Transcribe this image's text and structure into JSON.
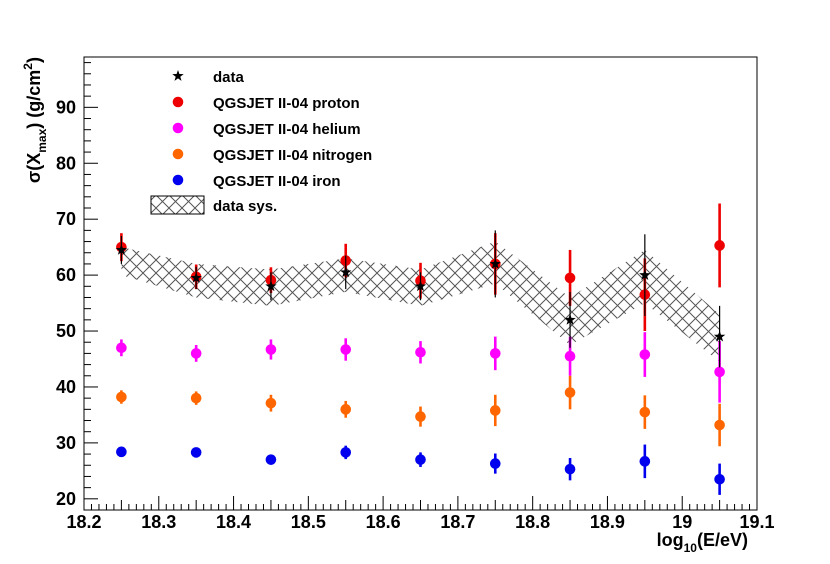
{
  "chart_data": {
    "type": "scatter",
    "xlabel_main": "log",
    "xlabel_sub": "10",
    "xlabel_rest": "(E/eV)",
    "ylabel_sigma": "σ(X",
    "ylabel_sub": "max",
    "ylabel_rest": ") (g/cm",
    "ylabel_sup": "2",
    "ylabel_close": ")",
    "xlim": [
      18.2,
      19.1
    ],
    "ylim": [
      18,
      99
    ],
    "x_ticks": [
      {
        "v": 18.2,
        "label": "18.2"
      },
      {
        "v": 18.3,
        "label": "18.3"
      },
      {
        "v": 18.4,
        "label": "18.4"
      },
      {
        "v": 18.5,
        "label": "18.5"
      },
      {
        "v": 18.6,
        "label": "18.6"
      },
      {
        "v": 18.7,
        "label": "18.7"
      },
      {
        "v": 18.8,
        "label": "18.8"
      },
      {
        "v": 18.9,
        "label": "18.9"
      },
      {
        "v": 19.0,
        "label": "19"
      },
      {
        "v": 19.1,
        "label": "19.1"
      }
    ],
    "y_ticks": [
      {
        "v": 20,
        "label": "20"
      },
      {
        "v": 30,
        "label": "30"
      },
      {
        "v": 40,
        "label": "40"
      },
      {
        "v": 50,
        "label": "50"
      },
      {
        "v": 60,
        "label": "60"
      },
      {
        "v": 70,
        "label": "70"
      },
      {
        "v": 80,
        "label": "80"
      },
      {
        "v": 90,
        "label": "90"
      }
    ],
    "legend": [
      {
        "key": "data",
        "label": "data",
        "marker": "star",
        "color": "#000000"
      },
      {
        "key": "proton",
        "label": "QGSJET II-04 proton",
        "marker": "circle",
        "color": "#ee0000"
      },
      {
        "key": "helium",
        "label": "QGSJET II-04 helium",
        "marker": "circle",
        "color": "#ff00ff"
      },
      {
        "key": "nitrogen",
        "label": "QGSJET II-04 nitrogen",
        "marker": "circle",
        "color": "#ff6600"
      },
      {
        "key": "iron",
        "label": "QGSJET II-04 iron",
        "marker": "circle",
        "color": "#0000ee"
      },
      {
        "key": "sys",
        "label": "data sys.",
        "marker": "hatch",
        "color": "#555555"
      }
    ],
    "series": [
      {
        "name": "data",
        "marker": "star",
        "color": "#000000",
        "x": [
          18.25,
          18.35,
          18.45,
          18.55,
          18.65,
          18.75,
          18.85,
          18.95,
          19.05
        ],
        "y": [
          64.5,
          59.5,
          58.0,
          60.5,
          58.0,
          62.0,
          52.0,
          60.0,
          49.0
        ],
        "err": [
          2.5,
          2.0,
          2.5,
          3.0,
          2.5,
          6.0,
          5.0,
          7.3,
          5.5
        ]
      },
      {
        "name": "QGSJET II-04 proton",
        "marker": "circle",
        "color": "#ee0000",
        "x": [
          18.25,
          18.35,
          18.45,
          18.55,
          18.65,
          18.75,
          18.85,
          18.95,
          19.05
        ],
        "y": [
          65.0,
          59.7,
          59.1,
          62.6,
          59.0,
          62.0,
          59.5,
          56.5,
          65.3
        ],
        "err": [
          2.5,
          2.2,
          2.3,
          3.0,
          3.2,
          5.5,
          5.0,
          6.5,
          7.5
        ]
      },
      {
        "name": "QGSJET II-04 helium",
        "marker": "circle",
        "color": "#ff00ff",
        "x": [
          18.25,
          18.35,
          18.45,
          18.55,
          18.65,
          18.75,
          18.85,
          18.95,
          19.05
        ],
        "y": [
          47.0,
          46.0,
          46.7,
          46.7,
          46.2,
          46.0,
          45.5,
          45.8,
          42.7
        ],
        "err": [
          1.5,
          1.5,
          1.8,
          2.0,
          2.0,
          3.0,
          3.5,
          4.0,
          5.5
        ]
      },
      {
        "name": "QGSJET II-04 nitrogen",
        "marker": "circle",
        "color": "#ff6600",
        "x": [
          18.25,
          18.35,
          18.45,
          18.55,
          18.65,
          18.75,
          18.85,
          18.95,
          19.05
        ],
        "y": [
          38.2,
          38.0,
          37.1,
          36.0,
          34.7,
          35.8,
          39.0,
          35.5,
          33.2
        ],
        "err": [
          1.2,
          1.2,
          1.5,
          1.5,
          1.8,
          2.8,
          3.0,
          3.0,
          3.8
        ]
      },
      {
        "name": "QGSJET II-04 iron",
        "marker": "circle",
        "color": "#0000ee",
        "x": [
          18.25,
          18.35,
          18.45,
          18.55,
          18.65,
          18.75,
          18.85,
          18.95,
          19.05
        ],
        "y": [
          28.4,
          28.3,
          27.0,
          28.3,
          27.0,
          26.3,
          25.3,
          26.7,
          23.5
        ],
        "err": [
          0.6,
          0.7,
          0.6,
          1.2,
          1.3,
          1.8,
          2.0,
          3.0,
          2.8
        ]
      }
    ],
    "sys_band": {
      "x": [
        18.25,
        18.35,
        18.45,
        18.55,
        18.65,
        18.75,
        18.85,
        18.95,
        19.05
      ],
      "upper": [
        65.0,
        62.0,
        61.0,
        63.0,
        61.0,
        66.0,
        56.0,
        64.5,
        53.0
      ],
      "lower": [
        60.0,
        56.0,
        54.5,
        57.0,
        54.5,
        58.5,
        47.5,
        55.0,
        44.5
      ]
    }
  }
}
